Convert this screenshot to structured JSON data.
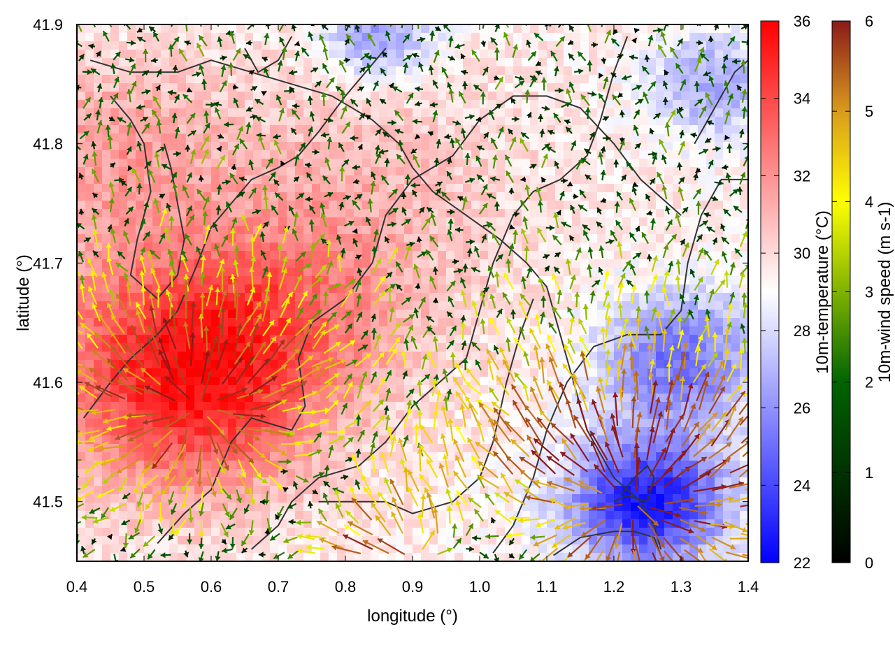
{
  "chart_data": {
    "type": "heatmap",
    "title": "",
    "xlabel": "longitude (°)",
    "ylabel": "latitude (°)",
    "xlim": [
      0.4,
      1.4
    ],
    "ylim": [
      41.45,
      41.9
    ],
    "x_ticks": [
      "0.4",
      "0.5",
      "0.6",
      "0.7",
      "0.8",
      "0.9",
      "1.0",
      "1.1",
      "1.2",
      "1.3",
      "1.4"
    ],
    "y_ticks": [
      "41.5",
      "41.6",
      "41.7",
      "41.8",
      "41.9"
    ],
    "grid": false,
    "fields": [
      {
        "name": "10m-temperature",
        "colorbar_label": "10m-temperature (°C)",
        "range": [
          22,
          36
        ],
        "ticks": [
          "22",
          "24",
          "26",
          "28",
          "30",
          "32",
          "34",
          "36"
        ],
        "colors": [
          "#0000ff",
          "#ffffff",
          "#ff0000"
        ]
      },
      {
        "name": "10m-wind speed",
        "colorbar_label": "10m-wind speed (m s-1)",
        "range": [
          0,
          6
        ],
        "ticks": [
          "0",
          "1",
          "2",
          "3",
          "4",
          "5",
          "6"
        ],
        "colors": [
          "#000000",
          "#006400",
          "#ffff00",
          "#d89b1d",
          "#8b1a1a"
        ],
        "vector_style": "arrows colored by speed"
      }
    ],
    "temperature_features": [
      {
        "lon": 0.57,
        "lat": 41.58,
        "value": 33.5,
        "sigma": 0.18
      },
      {
        "lon": 0.5,
        "lat": 41.65,
        "value": 32.0,
        "sigma": 0.2
      },
      {
        "lon": 0.8,
        "lat": 41.75,
        "value": 31.0,
        "sigma": 0.25
      },
      {
        "lon": 0.45,
        "lat": 41.8,
        "value": 31.5,
        "sigma": 0.15
      },
      {
        "lon": 0.7,
        "lat": 41.65,
        "value": 32.0,
        "sigma": 0.18
      },
      {
        "lon": 1.25,
        "lat": 41.5,
        "value": 22.5,
        "sigma": 0.12
      },
      {
        "lon": 1.3,
        "lat": 41.62,
        "value": 25.0,
        "sigma": 0.12
      },
      {
        "lon": 0.85,
        "lat": 41.89,
        "value": 26.0,
        "sigma": 0.08
      },
      {
        "lon": 1.35,
        "lat": 41.85,
        "value": 26.5,
        "sigma": 0.1
      }
    ],
    "wind_sources": [
      {
        "lon": 1.23,
        "lat": 41.5,
        "strength": 6.0,
        "radius": 0.3
      },
      {
        "lon": 0.58,
        "lat": 41.58,
        "strength": 5.5,
        "radius": 0.25
      },
      {
        "lon": 0.9,
        "lat": 41.45,
        "strength": 4.5,
        "radius": 0.2
      }
    ],
    "contours": [
      [
        [
          0.52,
          41.465
        ],
        [
          0.56,
          41.49
        ],
        [
          0.6,
          41.51
        ],
        [
          0.63,
          41.55
        ],
        [
          0.66,
          41.57
        ],
        [
          0.72,
          41.56
        ],
        [
          0.74,
          41.58
        ],
        [
          0.73,
          41.62
        ],
        [
          0.75,
          41.65
        ],
        [
          0.8,
          41.67
        ],
        [
          0.84,
          41.7
        ],
        [
          0.86,
          41.74
        ],
        [
          0.9,
          41.77
        ],
        [
          0.96,
          41.79
        ],
        [
          1.0,
          41.82
        ],
        [
          1.05,
          41.84
        ],
        [
          1.1,
          41.84
        ],
        [
          1.15,
          41.83
        ],
        [
          1.2,
          41.8
        ],
        [
          1.24,
          41.77
        ],
        [
          1.28,
          41.75
        ],
        [
          1.3,
          41.74
        ]
      ],
      [
        [
          0.42,
          41.87
        ],
        [
          0.48,
          41.86
        ],
        [
          0.55,
          41.86
        ],
        [
          0.6,
          41.87
        ],
        [
          0.66,
          41.86
        ],
        [
          0.72,
          41.85
        ],
        [
          0.78,
          41.84
        ],
        [
          0.84,
          41.82
        ],
        [
          0.88,
          41.8
        ],
        [
          0.9,
          41.78
        ],
        [
          0.93,
          41.76
        ],
        [
          0.98,
          41.74
        ],
        [
          1.03,
          41.72
        ],
        [
          1.07,
          41.7
        ],
        [
          1.1,
          41.68
        ],
        [
          1.12,
          41.64
        ],
        [
          1.14,
          41.6
        ],
        [
          1.16,
          41.56
        ],
        [
          1.2,
          41.52
        ],
        [
          1.24,
          41.5
        ],
        [
          1.26,
          41.48
        ],
        [
          1.27,
          41.46
        ]
      ],
      [
        [
          0.41,
          41.57
        ],
        [
          0.45,
          41.6
        ],
        [
          0.48,
          41.62
        ],
        [
          0.52,
          41.64
        ],
        [
          0.55,
          41.66
        ],
        [
          0.58,
          41.7
        ],
        [
          0.6,
          41.73
        ],
        [
          0.63,
          41.75
        ],
        [
          0.66,
          41.77
        ],
        [
          0.7,
          41.78
        ],
        [
          0.73,
          41.79
        ],
        [
          0.76,
          41.81
        ],
        [
          0.8,
          41.84
        ],
        [
          0.83,
          41.86
        ],
        [
          0.86,
          41.88
        ]
      ],
      [
        [
          0.45,
          41.84
        ],
        [
          0.48,
          41.82
        ],
        [
          0.5,
          41.8
        ],
        [
          0.51,
          41.76
        ],
        [
          0.49,
          41.72
        ],
        [
          0.48,
          41.69
        ],
        [
          0.52,
          41.67
        ],
        [
          0.55,
          41.69
        ],
        [
          0.56,
          41.72
        ],
        [
          0.55,
          41.75
        ],
        [
          0.54,
          41.78
        ],
        [
          0.53,
          41.8
        ]
      ],
      [
        [
          0.66,
          41.46
        ],
        [
          0.7,
          41.48
        ],
        [
          0.72,
          41.5
        ],
        [
          0.76,
          41.52
        ],
        [
          0.82,
          41.53
        ],
        [
          0.86,
          41.55
        ],
        [
          0.9,
          41.58
        ],
        [
          0.94,
          41.6
        ],
        [
          0.98,
          41.62
        ],
        [
          1.0,
          41.66
        ],
        [
          1.02,
          41.7
        ],
        [
          1.05,
          41.74
        ],
        [
          1.08,
          41.76
        ],
        [
          1.12,
          41.77
        ],
        [
          1.16,
          41.79
        ],
        [
          1.18,
          41.82
        ],
        [
          1.2,
          41.86
        ],
        [
          1.22,
          41.89
        ]
      ],
      [
        [
          1.02,
          41.457
        ],
        [
          1.05,
          41.48
        ],
        [
          1.08,
          41.52
        ],
        [
          1.1,
          41.56
        ],
        [
          1.13,
          41.6
        ],
        [
          1.17,
          41.63
        ],
        [
          1.22,
          41.64
        ],
        [
          1.27,
          41.64
        ],
        [
          1.3,
          41.66
        ],
        [
          1.31,
          41.7
        ],
        [
          1.33,
          41.74
        ],
        [
          1.36,
          41.77
        ],
        [
          1.4,
          41.77
        ]
      ],
      [
        [
          1.11,
          41.455
        ],
        [
          1.15,
          41.47
        ],
        [
          1.2,
          41.475
        ],
        [
          1.23,
          41.475
        ],
        [
          1.26,
          41.47
        ],
        [
          1.27,
          41.455
        ]
      ],
      [
        [
          1.2,
          41.5
        ],
        [
          1.22,
          41.505
        ],
        [
          1.25,
          41.5
        ],
        [
          1.26,
          41.52
        ],
        [
          1.25,
          41.53
        ],
        [
          1.23,
          41.52
        ],
        [
          1.21,
          41.505
        ]
      ],
      [
        [
          0.76,
          41.5
        ],
        [
          0.8,
          41.5
        ],
        [
          0.86,
          41.5
        ],
        [
          0.9,
          41.49
        ],
        [
          0.96,
          41.5
        ],
        [
          1.0,
          41.52
        ],
        [
          1.02,
          41.55
        ],
        [
          1.04,
          41.6
        ],
        [
          1.06,
          41.64
        ],
        [
          1.08,
          41.67
        ]
      ],
      [
        [
          0.65,
          41.88
        ],
        [
          0.67,
          41.86
        ],
        [
          0.7,
          41.87
        ],
        [
          0.72,
          41.89
        ]
      ],
      [
        [
          1.32,
          41.8
        ],
        [
          1.34,
          41.82
        ],
        [
          1.36,
          41.84
        ],
        [
          1.38,
          41.86
        ],
        [
          1.4,
          41.87
        ]
      ]
    ]
  }
}
